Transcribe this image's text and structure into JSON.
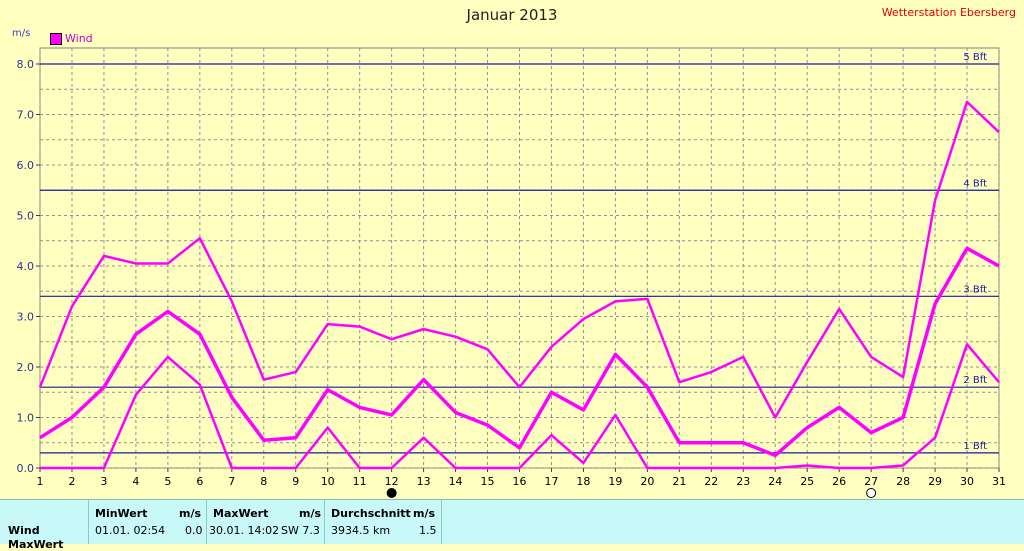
{
  "header": {
    "title": "Januar 2013",
    "station": "Wetterstation Ebersberg",
    "y_unit": "m/s",
    "legend_label": "Wind"
  },
  "chart_data": {
    "type": "line",
    "x": [
      1,
      2,
      3,
      4,
      5,
      6,
      7,
      8,
      9,
      10,
      11,
      12,
      13,
      14,
      15,
      16,
      17,
      18,
      19,
      20,
      21,
      22,
      23,
      24,
      25,
      26,
      27,
      28,
      29,
      30,
      31
    ],
    "series": [
      {
        "name": "Wind",
        "role": "max",
        "values": [
          1.6,
          3.2,
          4.2,
          4.05,
          4.05,
          4.55,
          3.3,
          1.75,
          1.9,
          2.85,
          2.8,
          2.55,
          2.75,
          2.6,
          2.35,
          1.6,
          2.4,
          2.95,
          3.3,
          3.35,
          1.7,
          1.9,
          2.2,
          1.0,
          2.1,
          3.15,
          2.2,
          1.8,
          5.3,
          7.25,
          6.65
        ]
      },
      {
        "name": "Wind",
        "role": "avg",
        "values": [
          0.6,
          1.0,
          1.6,
          2.65,
          3.1,
          2.65,
          1.4,
          0.55,
          0.6,
          1.55,
          1.2,
          1.05,
          1.75,
          1.1,
          0.85,
          0.4,
          1.5,
          1.15,
          2.25,
          1.6,
          0.5,
          0.5,
          0.5,
          0.25,
          0.8,
          1.2,
          0.7,
          1.0,
          3.25,
          4.35,
          4.0
        ]
      },
      {
        "name": "Wind",
        "role": "min",
        "values": [
          0,
          0,
          0,
          1.45,
          2.2,
          1.65,
          0,
          0,
          0,
          0.8,
          0,
          0,
          0.6,
          0,
          0,
          0,
          0.65,
          0.1,
          1.05,
          0,
          0,
          0,
          0,
          0,
          0.05,
          0,
          0,
          0.05,
          0.6,
          2.45,
          1.7
        ]
      }
    ],
    "color": "#ff00ff",
    "xlim": [
      1,
      31
    ],
    "ylim": [
      0,
      8.0
    ],
    "y_ticks": [
      "0.0",
      "1.0",
      "2.0",
      "3.0",
      "4.0",
      "5.0",
      "6.0",
      "7.0",
      "8.0"
    ],
    "x_ticks": [
      "1",
      "2",
      "3",
      "4",
      "5",
      "6",
      "7",
      "8",
      "9",
      "10",
      "11",
      "12",
      "13",
      "14",
      "15",
      "16",
      "17",
      "18",
      "19",
      "20",
      "21",
      "22",
      "23",
      "24",
      "25",
      "26",
      "27",
      "28",
      "29",
      "30",
      "31"
    ],
    "beaufort_lines": [
      {
        "label": "1 Bft",
        "value": 0.3
      },
      {
        "label": "2 Bft",
        "value": 1.6
      },
      {
        "label": "3 Bft",
        "value": 3.4
      },
      {
        "label": "4 Bft",
        "value": 5.5
      },
      {
        "label": "5 Bft",
        "value": 8.0
      }
    ],
    "moon_markers": [
      {
        "day": 12,
        "phase": "new-moon"
      },
      {
        "day": 27,
        "phase": "full-moon"
      }
    ],
    "grid": true
  },
  "summary": {
    "row_label": "Wind",
    "row_label_2": "MaxWert",
    "min_header": "MinWert",
    "min_unit": "m/s",
    "min_date": "01.01.  02:54",
    "min_value": "0.0",
    "max_header": "MaxWert",
    "max_unit": "m/s",
    "max_date": "30.01.  14:02",
    "max_dir_value": "SW 7.3",
    "avg_header": "Durchschnitt",
    "avg_unit": "m/s",
    "avg_distance": "3934.5 km",
    "avg_value": "1.5"
  }
}
